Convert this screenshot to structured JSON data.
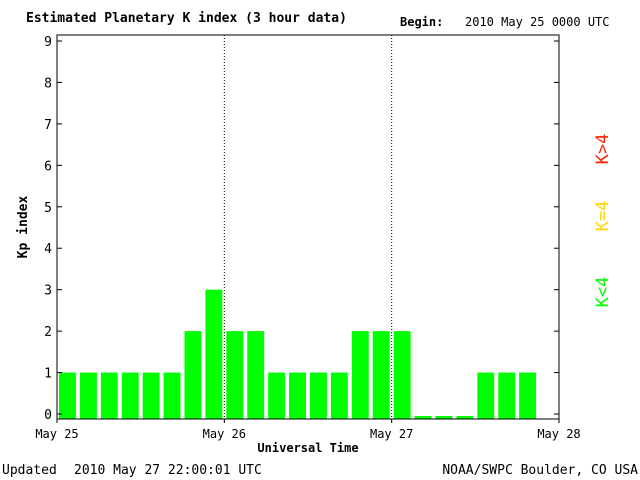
{
  "header": {
    "title": "Estimated Planetary K index (3 hour data)",
    "begin_label": "Begin:",
    "begin_value": "2010 May 25 0000 UTC"
  },
  "footer": {
    "updated_label": "Updated",
    "updated_value": "2010 May 27 22:00:01 UTC",
    "source": "NOAA/SWPC Boulder, CO USA"
  },
  "legend": {
    "high": "K>4",
    "equal": "K=4",
    "low": "K<4"
  },
  "colors": {
    "low": "#00ff00",
    "equal": "#ffd700",
    "high": "#ff2200",
    "axis": "#000000"
  },
  "chart_data": {
    "type": "bar",
    "title": "Estimated Planetary K index (3 hour data)",
    "xlabel": "Universal Time",
    "ylabel": "Kp index",
    "ylim": [
      0,
      9
    ],
    "yticks": [
      0,
      1,
      2,
      3,
      4,
      5,
      6,
      7,
      8,
      9
    ],
    "xticks": [
      "May 25",
      "May 26",
      "May 27",
      "May 28"
    ],
    "day_dividers": [
      "May 26",
      "May 27"
    ],
    "interval_hours": 3,
    "values": [
      1,
      1,
      1,
      1,
      1,
      1,
      2,
      3,
      2,
      2,
      1,
      1,
      1,
      1,
      2,
      2,
      2,
      0,
      0,
      0,
      1,
      1,
      1
    ],
    "grid": false
  }
}
